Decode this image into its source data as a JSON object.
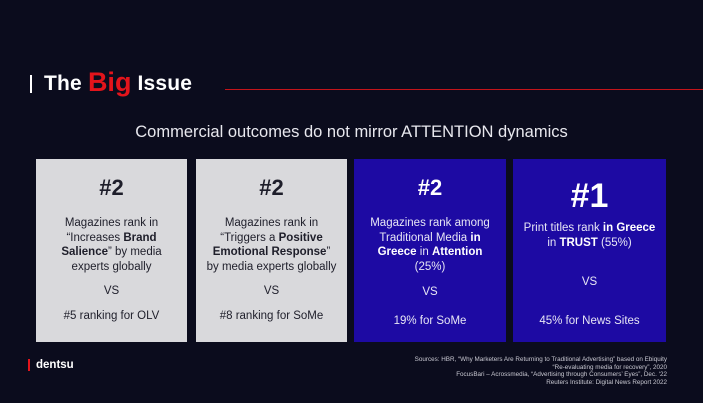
{
  "title": {
    "before": "The",
    "highlight": "Big",
    "after": "Issue"
  },
  "subtitle": "Commercial outcomes do not mirror ATTENTION dynamics",
  "cards": [
    {
      "rank": "#2",
      "desc_parts": [
        "Magazines rank in “Increases ",
        "Brand Salience",
        "” by media experts globally"
      ],
      "vs": "VS",
      "foot": "#5 ranking for OLV"
    },
    {
      "rank": "#2",
      "desc_parts": [
        "Magazines rank in “Triggers a ",
        "Positive Emotional Response",
        "” by media experts globally"
      ],
      "vs": "VS",
      "foot": "#8 ranking for SoMe"
    },
    {
      "rank": "#2",
      "desc_parts": [
        "Magazines rank among Traditional Media ",
        "in Greece",
        " in ",
        "Attention",
        " (25%)"
      ],
      "vs": "VS",
      "foot": "19% for SoMe"
    },
    {
      "rank": "#1",
      "desc_parts": [
        "Print titles rank ",
        "in Greece",
        " in ",
        "TRUST",
        " (55%)"
      ],
      "vs": "VS",
      "foot": "45% for News Sites"
    }
  ],
  "logo": "dentsu",
  "sources": [
    "Sources: HBR, “Why Marketers Are Returning to Traditional Advertising” based on Ebiquity",
    "“Re-evaluating media for recovery”, 2020",
    "FocusBari – Acrossmedia, “Advertising through Consumers’ Eyes”, Dec. ‘22",
    "Reuters Institute: Digital News Report 2022"
  ],
  "colors": {
    "accent": "#e3141b",
    "background": "#0b0c1d",
    "card_light": "#d9d9dc",
    "card_dark": "#1d0aa3"
  }
}
